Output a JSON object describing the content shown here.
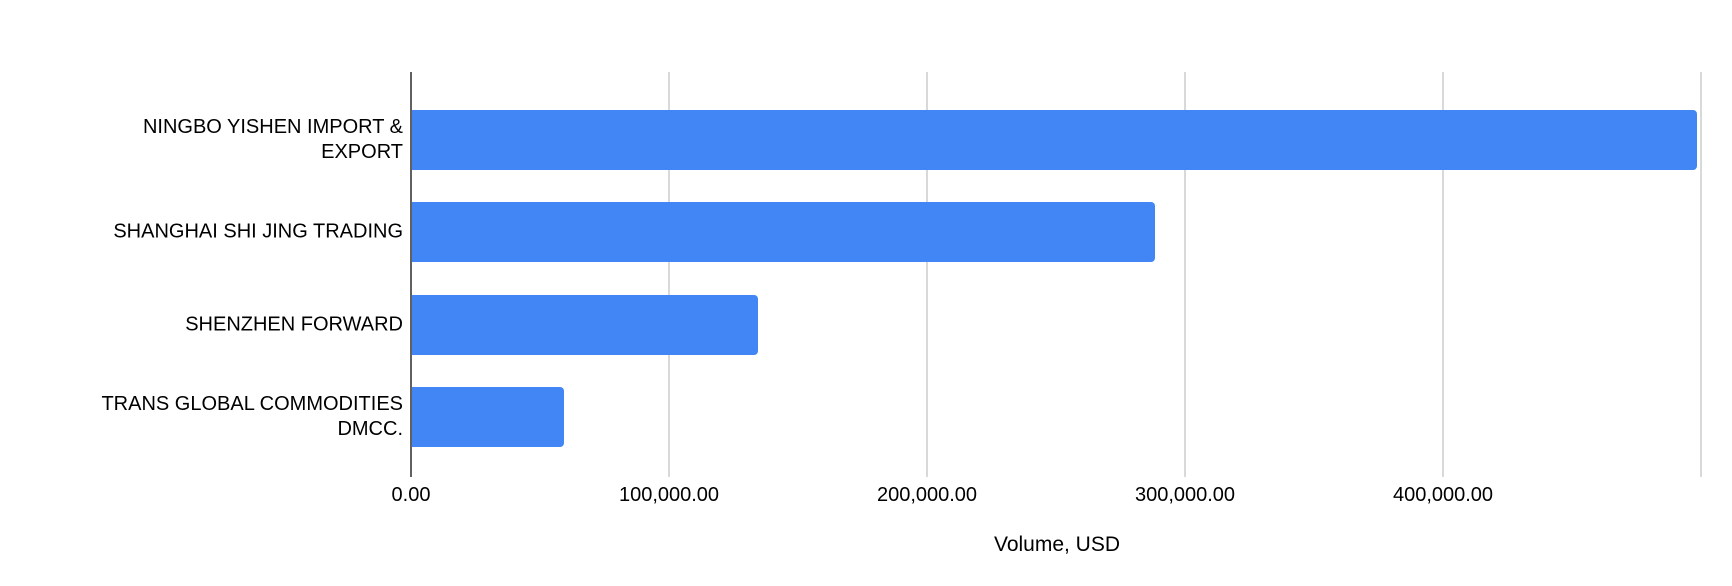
{
  "chart_data": {
    "type": "bar",
    "orientation": "horizontal",
    "title": "",
    "categories": [
      {
        "label": "NINGBO YISHEN IMPORT & EXPORT",
        "lines": [
          "NINGBO YISHEN IMPORT &",
          "EXPORT"
        ]
      },
      {
        "label": "SHANGHAI SHI JING TRADING",
        "lines": [
          "SHANGHAI SHI JING TRADING"
        ]
      },
      {
        "label": "SHENZHEN FORWARD",
        "lines": [
          "SHENZHEN FORWARD"
        ]
      },
      {
        "label": "TRANS GLOBAL COMMODITIES DMCC.",
        "lines": [
          "TRANS GLOBAL COMMODITIES",
          "DMCC."
        ]
      }
    ],
    "values": [
      498000,
      288000,
      134000,
      59000
    ],
    "xlabel": "Volume, USD",
    "ylabel": "",
    "xlim": [
      0,
      500000
    ],
    "xticks": [
      {
        "value": 0,
        "label": "0.00"
      },
      {
        "value": 100000,
        "label": "100,000.00"
      },
      {
        "value": 200000,
        "label": "200,000.00"
      },
      {
        "value": 300000,
        "label": "300,000.00"
      },
      {
        "value": 400000,
        "label": "400,000.00"
      },
      {
        "value": 500000,
        "label": ""
      }
    ],
    "grid": true,
    "legend": "none",
    "colors": {
      "bar": "#4285f4",
      "baseline": "#616161",
      "gridline": "#d9d9d9",
      "text": "#000000",
      "background": "#ffffff"
    }
  }
}
